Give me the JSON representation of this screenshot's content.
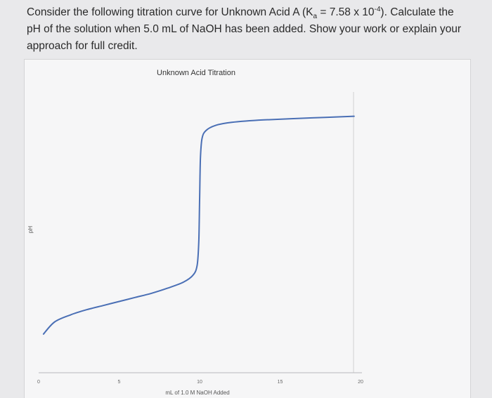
{
  "question": {
    "line1_pre": "Consider the following titration curve for Unknown Acid A (K",
    "ka_sub": "a",
    "ka_eq": " = 7.58 x 10",
    "ka_exp": "-4",
    "line1_post": "). Calculate the",
    "line2": "pH of the solution when 5.0 mL of NaOH has been added. Show your work or explain your",
    "line3": "approach for full credit."
  },
  "chart_data": {
    "type": "line",
    "title": "Unknown Acid Titration",
    "xlabel": "mL of 1.0 M NaOH Added",
    "ylabel": "pH",
    "xlim": [
      0,
      20
    ],
    "ylim": [
      0,
      14
    ],
    "xticks": [
      "0",
      "5",
      "10",
      "15",
      "20"
    ],
    "series": [
      {
        "x": [
          0.3,
          1.0,
          2.0,
          3.0,
          4.0,
          5.0,
          6.0,
          7.0,
          8.0,
          9.0,
          9.6,
          9.85,
          9.95,
          10.0,
          10.05,
          10.15,
          10.4,
          11.0,
          12.0,
          14.0,
          17.0,
          19.6
        ],
        "y": [
          1.9,
          2.5,
          2.85,
          3.1,
          3.3,
          3.5,
          3.7,
          3.9,
          4.15,
          4.45,
          4.8,
          5.3,
          6.5,
          8.5,
          10.5,
          11.5,
          11.9,
          12.15,
          12.3,
          12.42,
          12.52,
          12.6
        ]
      }
    ],
    "series_color": "#4a6fb5"
  }
}
